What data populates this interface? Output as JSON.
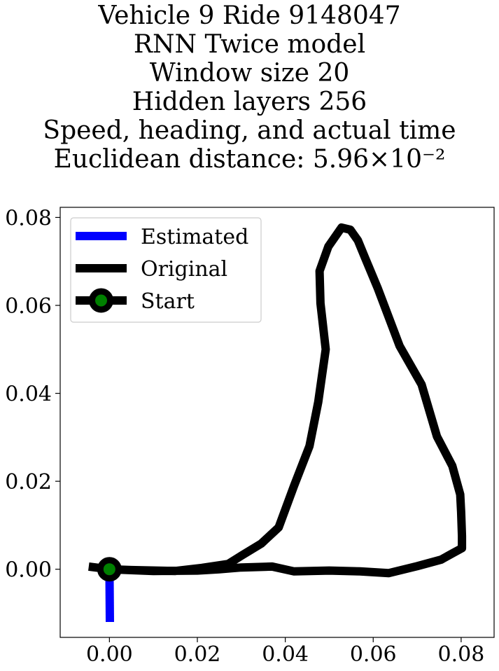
{
  "title_lines": [
    "Vehicle 9 Ride 9148047",
    "RNN Twice model",
    "Window size 20",
    "Hidden layers 256",
    "Speed, heading, and actual time",
    "Euclidean distance: 5.96×10⁻²"
  ],
  "chart_data": {
    "type": "line",
    "title": "Vehicle 9 Ride 9148047 / RNN Twice model / Window size 20 / Hidden layers 256 / Speed, heading, and actual time / Euclidean distance: 5.96×10⁻²",
    "xlabel": "",
    "ylabel": "",
    "xlim": [
      -0.0112,
      0.0875
    ],
    "ylim": [
      -0.0155,
      0.0823
    ],
    "xticks": [
      "0.00",
      "0.02",
      "0.04",
      "0.06",
      "0.08"
    ],
    "yticks": [
      "0.00",
      "0.02",
      "0.04",
      "0.06",
      "0.08"
    ],
    "xtick_values": [
      0.0,
      0.02,
      0.04,
      0.06,
      0.08
    ],
    "ytick_values": [
      0.0,
      0.02,
      0.04,
      0.06,
      0.08
    ],
    "grid": false,
    "legend_placement": "top-left",
    "legend": [
      "Estimated",
      "Original",
      "Start"
    ],
    "series": [
      {
        "name": "Estimated",
        "color": "#0000ff",
        "points": [
          [
            0.0,
            0.0
          ],
          [
            0.0001,
            -0.012
          ]
        ]
      },
      {
        "name": "Original",
        "color": "#000000",
        "points": [
          [
            -0.0047,
            0.0006
          ],
          [
            0.0,
            0.0
          ],
          [
            0.01,
            -0.0004
          ],
          [
            0.02,
            -0.0003
          ],
          [
            0.025,
            0.0
          ],
          [
            0.03,
            0.0004
          ],
          [
            0.037,
            0.0006
          ],
          [
            0.042,
            -0.0005
          ],
          [
            0.05,
            -0.0003
          ],
          [
            0.057,
            -0.0005
          ],
          [
            0.0635,
            -0.0009
          ],
          [
            0.07,
            0.0007
          ],
          [
            0.0755,
            0.0022
          ],
          [
            0.078,
            0.0036
          ],
          [
            0.0802,
            0.0048
          ],
          [
            0.0802,
            0.0075
          ],
          [
            0.08,
            0.013
          ],
          [
            0.0798,
            0.017
          ],
          [
            0.078,
            0.0235
          ],
          [
            0.0745,
            0.0302
          ],
          [
            0.071,
            0.042
          ],
          [
            0.066,
            0.0508
          ],
          [
            0.061,
            0.064
          ],
          [
            0.0582,
            0.0707
          ],
          [
            0.0565,
            0.0748
          ],
          [
            0.0548,
            0.0772
          ],
          [
            0.0528,
            0.0777
          ],
          [
            0.0498,
            0.0734
          ],
          [
            0.0478,
            0.0678
          ],
          [
            0.048,
            0.0605
          ],
          [
            0.0492,
            0.05
          ],
          [
            0.0475,
            0.038
          ],
          [
            0.0455,
            0.028
          ],
          [
            0.042,
            0.019
          ],
          [
            0.0385,
            0.0095
          ],
          [
            0.0345,
            0.0058
          ],
          [
            0.0302,
            0.0032
          ],
          [
            0.027,
            0.0012
          ],
          [
            0.021,
            0.0003
          ],
          [
            0.015,
            -0.0004
          ],
          [
            0.005,
            -0.0002
          ],
          [
            0.0,
            0.0
          ]
        ]
      }
    ],
    "start_point": {
      "x": 0.0,
      "y": 0.0,
      "edge_color": "#000000",
      "face_color": "#008000"
    }
  }
}
